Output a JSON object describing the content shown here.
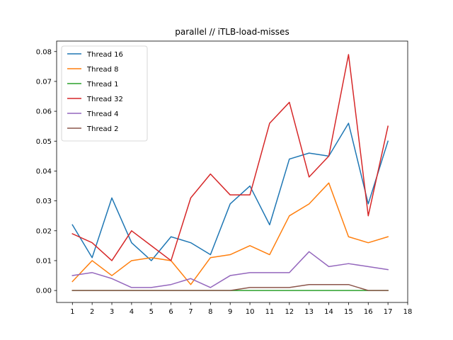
{
  "chart_data": {
    "type": "line",
    "title": "parallel // iTLB-load-misses",
    "xlabel": "",
    "ylabel": "",
    "x": [
      1,
      2,
      3,
      4,
      5,
      6,
      7,
      8,
      9,
      10,
      11,
      12,
      13,
      14,
      15,
      16,
      17
    ],
    "xticks": [
      1,
      2,
      3,
      4,
      5,
      6,
      7,
      8,
      9,
      10,
      11,
      12,
      13,
      14,
      15,
      16,
      17,
      18
    ],
    "xlim": [
      0.2,
      18.0
    ],
    "yticks": [
      0.0,
      0.01,
      0.02,
      0.03,
      0.04,
      0.05,
      0.06,
      0.07,
      0.08
    ],
    "ytick_labels": [
      "0.00",
      "0.01",
      "0.02",
      "0.03",
      "0.04",
      "0.05",
      "0.06",
      "0.07",
      "0.08"
    ],
    "ylim": [
      -0.004,
      0.0835
    ],
    "grid": false,
    "legend_position": "top-left",
    "series": [
      {
        "name": "Thread 16",
        "color": "#1f77b4",
        "values": [
          0.022,
          0.011,
          0.031,
          0.016,
          0.01,
          0.018,
          0.016,
          0.012,
          0.029,
          0.035,
          0.022,
          0.044,
          0.046,
          0.045,
          0.056,
          0.029,
          0.05
        ]
      },
      {
        "name": "Thread 8",
        "color": "#ff7f0e",
        "values": [
          0.003,
          0.01,
          0.005,
          0.01,
          0.011,
          0.01,
          0.002,
          0.011,
          0.012,
          0.015,
          0.012,
          0.025,
          0.029,
          0.036,
          0.018,
          0.016,
          0.018
        ]
      },
      {
        "name": "Thread 1",
        "color": "#2ca02c",
        "values": [
          0,
          0,
          0,
          0,
          0,
          0,
          0,
          0,
          0,
          0,
          0,
          0,
          0,
          0,
          0,
          0,
          0
        ]
      },
      {
        "name": "Thread 32",
        "color": "#d62728",
        "values": [
          0.019,
          0.016,
          0.01,
          0.02,
          0.015,
          0.01,
          0.031,
          0.039,
          0.032,
          0.032,
          0.056,
          0.063,
          0.038,
          0.045,
          0.079,
          0.025,
          0.055
        ]
      },
      {
        "name": "Thread 4",
        "color": "#9467bd",
        "values": [
          0.005,
          0.006,
          0.004,
          0.001,
          0.001,
          0.002,
          0.004,
          0.001,
          0.005,
          0.006,
          0.006,
          0.006,
          0.013,
          0.008,
          0.009,
          0.008,
          0.007
        ]
      },
      {
        "name": "Thread 2",
        "color": "#8c564b",
        "values": [
          0,
          0,
          0,
          0,
          0,
          0,
          0,
          0,
          0,
          0.001,
          0.001,
          0.001,
          0.002,
          0.002,
          0.002,
          0,
          0
        ]
      }
    ]
  }
}
